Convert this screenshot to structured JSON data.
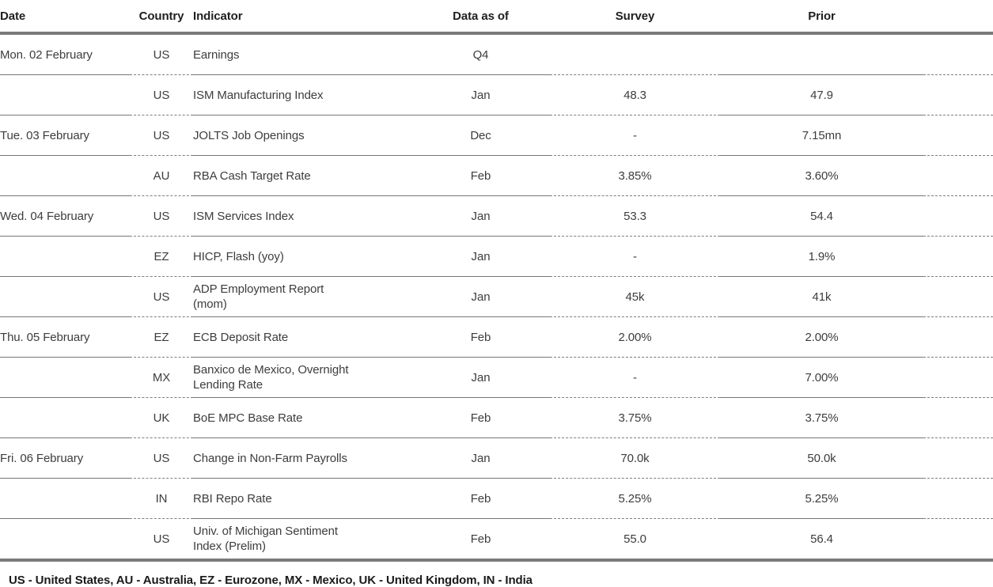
{
  "table": {
    "columns": [
      {
        "key": "date",
        "label": "Date"
      },
      {
        "key": "country",
        "label": "Country"
      },
      {
        "key": "indicator",
        "label": "Indicator"
      },
      {
        "key": "data_as_of",
        "label": "Data as of"
      },
      {
        "key": "survey",
        "label": "Survey"
      },
      {
        "key": "prior",
        "label": "Prior"
      }
    ],
    "rows": [
      {
        "date": "Mon. 02 February",
        "country": "US",
        "indicator": "Earnings",
        "data_as_of": "Q4",
        "survey": "",
        "prior": ""
      },
      {
        "date": "",
        "country": "US",
        "indicator": "ISM Manufacturing Index",
        "data_as_of": "Jan",
        "survey": "48.3",
        "prior": "47.9"
      },
      {
        "date": "Tue. 03 February",
        "country": "US",
        "indicator": "JOLTS Job Openings",
        "data_as_of": "Dec",
        "survey": "-",
        "prior": "7.15mn"
      },
      {
        "date": "",
        "country": "AU",
        "indicator": "RBA Cash Target Rate",
        "data_as_of": "Feb",
        "survey": "3.85%",
        "prior": "3.60%"
      },
      {
        "date": "Wed. 04 February",
        "country": "US",
        "indicator": "ISM Services Index",
        "data_as_of": "Jan",
        "survey": "53.3",
        "prior": "54.4"
      },
      {
        "date": "",
        "country": "EZ",
        "indicator": "HICP, Flash (yoy)",
        "data_as_of": "Jan",
        "survey": "-",
        "prior": "1.9%"
      },
      {
        "date": "",
        "country": "US",
        "indicator": "ADP Employment Report\n(mom)",
        "data_as_of": "Jan",
        "survey": "45k",
        "prior": "41k"
      },
      {
        "date": "Thu. 05 February",
        "country": "EZ",
        "indicator": "ECB Deposit Rate",
        "data_as_of": "Feb",
        "survey": "2.00%",
        "prior": "2.00%"
      },
      {
        "date": "",
        "country": "MX",
        "indicator": "Banxico de Mexico, Overnight\nLending Rate",
        "data_as_of": "Jan",
        "survey": "-",
        "prior": "7.00%"
      },
      {
        "date": "",
        "country": "UK",
        "indicator": "BoE MPC Base Rate",
        "data_as_of": "Feb",
        "survey": "3.75%",
        "prior": "3.75%"
      },
      {
        "date": "Fri. 06 February",
        "country": "US",
        "indicator": "Change in Non-Farm Payrolls",
        "data_as_of": "Jan",
        "survey": "70.0k",
        "prior": "50.0k"
      },
      {
        "date": "",
        "country": "IN",
        "indicator": "RBI Repo Rate",
        "data_as_of": "Feb",
        "survey": "5.25%",
        "prior": "5.25%"
      },
      {
        "date": "",
        "country": "US",
        "indicator": "Univ. of Michigan Sentiment\nIndex (Prelim)",
        "data_as_of": "Feb",
        "survey": "55.0",
        "prior": "56.4"
      }
    ]
  },
  "footnote": "US - United States, AU - Australia, EZ - Eurozone, MX - Mexico, UK - United Kingdom, IN - India",
  "colors": {
    "thick_rule": "#7a7a7a",
    "thin_rule": "#767676",
    "header_text": "#1f1f1f",
    "body_text": "#3d3d3d"
  }
}
